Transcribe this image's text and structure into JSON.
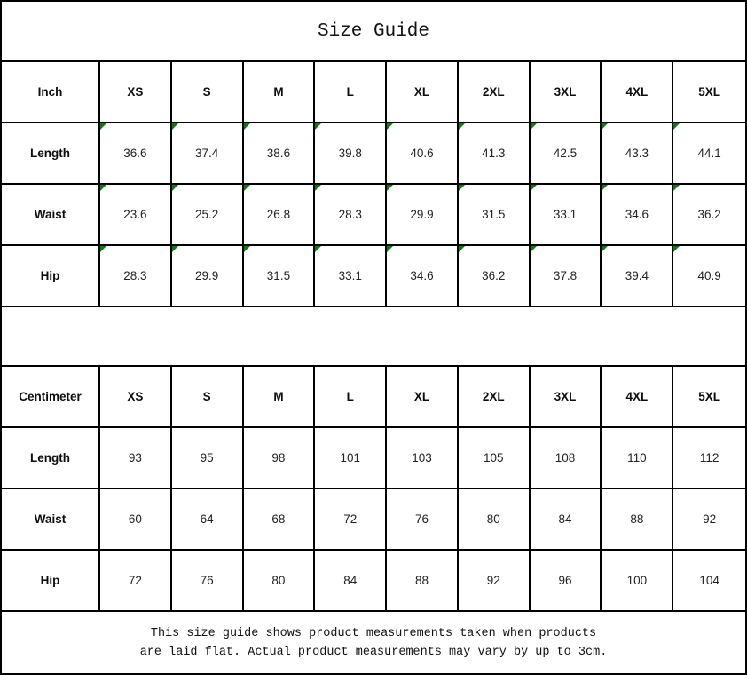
{
  "title": "Size Guide",
  "colors": {
    "grid_line": "#000000",
    "marker_green": "#0b7d0b",
    "background": "#ffffff",
    "text": "#1c1c1c"
  },
  "inch_table": {
    "unit": "Inch",
    "sizes": [
      "XS",
      "S",
      "M",
      "L",
      "XL",
      "2XL",
      "3XL",
      "4XL",
      "5XL"
    ],
    "rows": [
      {
        "label": "Length",
        "values": [
          "36.6",
          "37.4",
          "38.6",
          "39.8",
          "40.6",
          "41.3",
          "42.5",
          "43.3",
          "44.1"
        ]
      },
      {
        "label": "Waist",
        "values": [
          "23.6",
          "25.2",
          "26.8",
          "28.3",
          "29.9",
          "31.5",
          "33.1",
          "34.6",
          "36.2"
        ]
      },
      {
        "label": "Hip",
        "values": [
          "28.3",
          "29.9",
          "31.5",
          "33.1",
          "34.6",
          "36.2",
          "37.8",
          "39.4",
          "40.9"
        ]
      }
    ]
  },
  "cm_table": {
    "unit": "Centimeter",
    "sizes": [
      "XS",
      "S",
      "M",
      "L",
      "XL",
      "2XL",
      "3XL",
      "4XL",
      "5XL"
    ],
    "rows": [
      {
        "label": "Length",
        "values": [
          "93",
          "95",
          "98",
          "101",
          "103",
          "105",
          "108",
          "110",
          "112"
        ]
      },
      {
        "label": "Waist",
        "values": [
          "60",
          "64",
          "68",
          "72",
          "76",
          "80",
          "84",
          "88",
          "92"
        ]
      },
      {
        "label": "Hip",
        "values": [
          "72",
          "76",
          "80",
          "84",
          "88",
          "92",
          "96",
          "100",
          "104"
        ]
      }
    ]
  },
  "footer": {
    "line1": "This size guide shows product measurements taken when products",
    "line2": "are laid flat. Actual product measurements may vary by up to 3cm."
  }
}
